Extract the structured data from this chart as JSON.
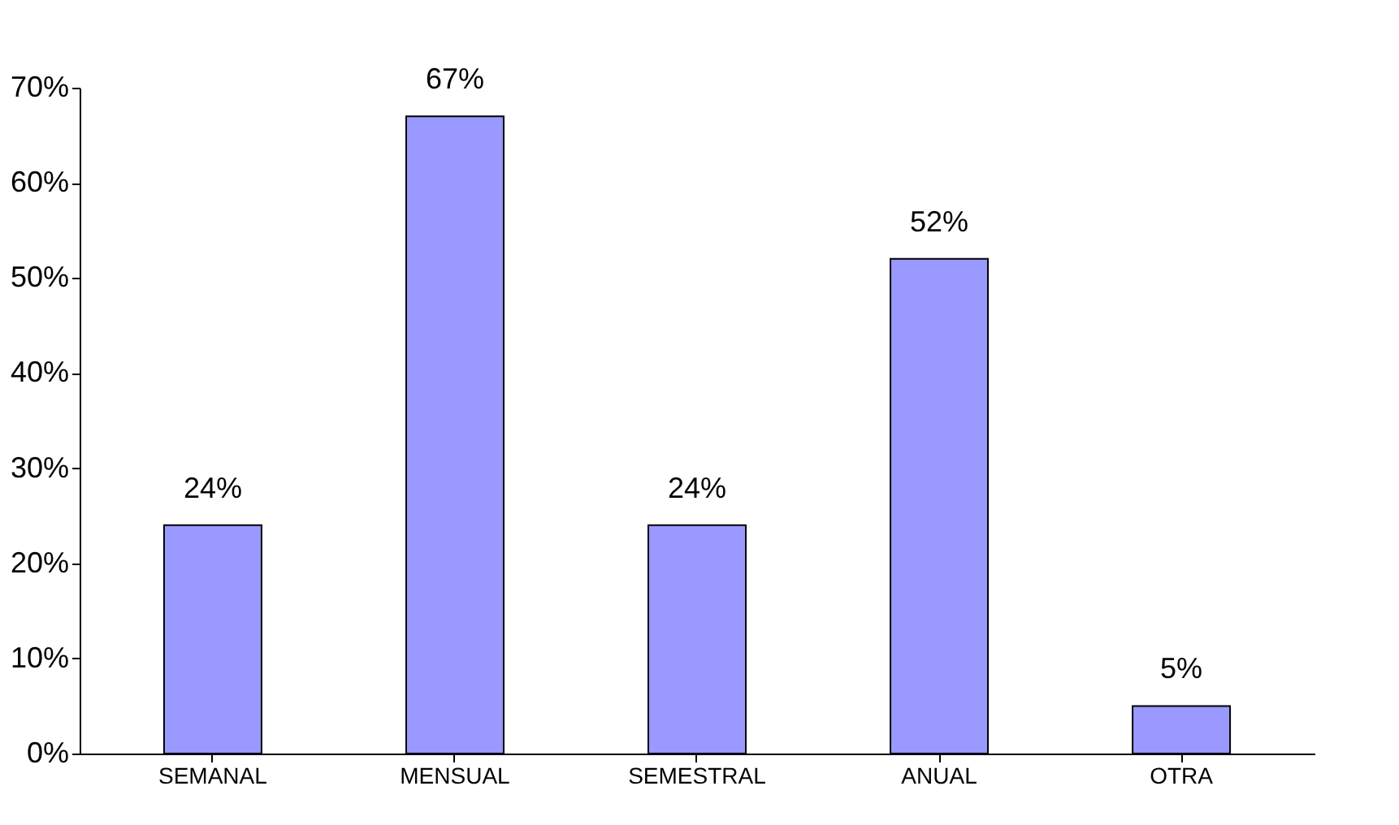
{
  "chart_data": {
    "type": "bar",
    "categories": [
      "SEMANAL",
      "MENSUAL",
      "SEMESTRAL",
      "ANUAL",
      "OTRA"
    ],
    "values": [
      24,
      67,
      24,
      52,
      5
    ],
    "value_labels": [
      "24%",
      "67%",
      "24%",
      "52%",
      "5%"
    ],
    "color": "#9999ff",
    "ylim": [
      0,
      70
    ],
    "yticks": [
      {
        "value": 0,
        "label": "0%"
      },
      {
        "value": 10,
        "label": "10%"
      },
      {
        "value": 20,
        "label": "20%"
      },
      {
        "value": 30,
        "label": "30%"
      },
      {
        "value": 40,
        "label": "40%"
      },
      {
        "value": 50,
        "label": "50%"
      },
      {
        "value": 60,
        "label": "60%"
      },
      {
        "value": 70,
        "label": "70%"
      }
    ],
    "grid": false
  }
}
